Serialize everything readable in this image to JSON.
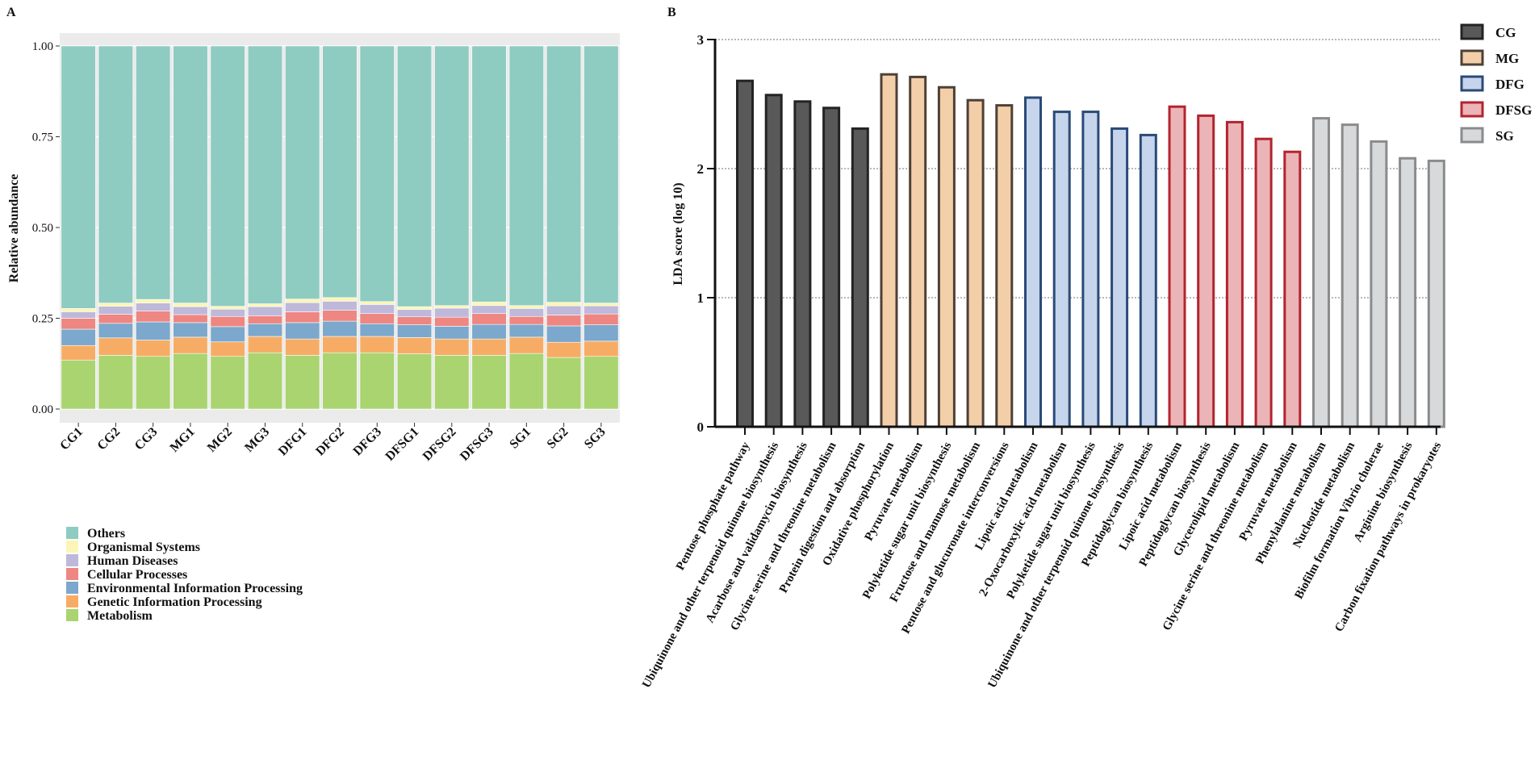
{
  "chart_data": [
    {
      "panel": "A",
      "type": "bar",
      "stacked": true,
      "ylabel": "Relative abundance",
      "xlabel": "",
      "ylim": [
        0,
        1
      ],
      "yticks": [
        "0.00",
        "0.25",
        "0.50",
        "0.75",
        "1.00"
      ],
      "grid": true,
      "legend_position": "bottom-left",
      "categories": [
        "CG1",
        "CG2",
        "CG3",
        "MG1",
        "MG2",
        "MG3",
        "DFG1",
        "DFG2",
        "DFG3",
        "DFSG1",
        "DFSG2",
        "DFSG3",
        "SG1",
        "SG2",
        "SG3"
      ],
      "series": [
        {
          "name": "Metabolism",
          "color": "#A9D46F",
          "values": [
            0.135,
            0.148,
            0.145,
            0.153,
            0.145,
            0.155,
            0.148,
            0.155,
            0.155,
            0.152,
            0.148,
            0.148,
            0.153,
            0.142,
            0.145
          ]
        },
        {
          "name": "Genetic Information Processing",
          "color": "#F7AC65",
          "values": [
            0.04,
            0.048,
            0.045,
            0.045,
            0.04,
            0.045,
            0.045,
            0.045,
            0.045,
            0.045,
            0.045,
            0.045,
            0.045,
            0.042,
            0.042
          ]
        },
        {
          "name": "Environmental Information Processing",
          "color": "#7BA8CC",
          "values": [
            0.045,
            0.04,
            0.05,
            0.04,
            0.042,
            0.035,
            0.045,
            0.042,
            0.035,
            0.035,
            0.035,
            0.04,
            0.035,
            0.045,
            0.045
          ]
        },
        {
          "name": "Cellular Processes",
          "color": "#EE8682",
          "values": [
            0.03,
            0.025,
            0.03,
            0.022,
            0.028,
            0.022,
            0.03,
            0.03,
            0.028,
            0.022,
            0.025,
            0.03,
            0.022,
            0.03,
            0.03
          ]
        },
        {
          "name": "Human Diseases",
          "color": "#BEB8DA",
          "values": [
            0.018,
            0.022,
            0.022,
            0.022,
            0.02,
            0.025,
            0.025,
            0.025,
            0.025,
            0.02,
            0.025,
            0.022,
            0.022,
            0.025,
            0.022
          ]
        },
        {
          "name": "Organismal Systems",
          "color": "#FBF6B5",
          "values": [
            0.009,
            0.009,
            0.01,
            0.01,
            0.008,
            0.008,
            0.01,
            0.01,
            0.008,
            0.008,
            0.007,
            0.01,
            0.008,
            0.01,
            0.008
          ]
        },
        {
          "name": "Others",
          "color": "#8ECBC1",
          "values": [
            0.723,
            0.708,
            0.698,
            0.708,
            0.717,
            0.71,
            0.697,
            0.693,
            0.704,
            0.718,
            0.715,
            0.705,
            0.715,
            0.706,
            0.708
          ]
        }
      ]
    },
    {
      "panel": "B",
      "type": "bar",
      "ylabel": "LDA score (log 10)",
      "xlabel": "",
      "ylim": [
        0,
        3
      ],
      "yticks": [
        "0",
        "1",
        "2",
        "3"
      ],
      "grid": true,
      "legend_position": "top-right",
      "groups": [
        {
          "name": "CG",
          "fill": "#595959",
          "stroke": "#232323"
        },
        {
          "name": "MG",
          "fill": "#F3CFA9",
          "stroke": "#4E4037"
        },
        {
          "name": "DFG",
          "fill": "#C6D5EC",
          "stroke": "#2A4A78"
        },
        {
          "name": "DFSG",
          "fill": "#EBB4B7",
          "stroke": "#B3242E"
        },
        {
          "name": "SG",
          "fill": "#D8D9DA",
          "stroke": "#8A8B8D"
        }
      ],
      "bars": [
        {
          "label": "Pentose phosphate pathway",
          "group": "CG",
          "value": 2.68
        },
        {
          "label": "Ubiquinone and other terpenoid quinone biosynthesis",
          "group": "CG",
          "value": 2.57
        },
        {
          "label": "Acarbose and validamycin biosynthesis",
          "group": "CG",
          "value": 2.52
        },
        {
          "label": "Glycine serine and threonine metabolism",
          "group": "CG",
          "value": 2.47
        },
        {
          "label": "Protein digestion and absorption",
          "group": "CG",
          "value": 2.31
        },
        {
          "label": "Oxidative phosphorylation",
          "group": "MG",
          "value": 2.73
        },
        {
          "label": "Pyruvate metabolism",
          "group": "MG",
          "value": 2.71
        },
        {
          "label": "Polyketide sugar unit biosynthesis",
          "group": "MG",
          "value": 2.63
        },
        {
          "label": "Fructose and mannose metabolism",
          "group": "MG",
          "value": 2.53
        },
        {
          "label": "Pentose and glucuronate interconversions",
          "group": "MG",
          "value": 2.49
        },
        {
          "label": "Lipoic acid metabolism",
          "group": "DFG",
          "value": 2.55
        },
        {
          "label": "2-Oxocarboxylic acid metabolism",
          "group": "DFG",
          "value": 2.44
        },
        {
          "label": "Polyketide sugar unit biosynthesis",
          "group": "DFG",
          "value": 2.44
        },
        {
          "label": "Ubiquinone and other terpenoid quinone biosynthesis",
          "group": "DFG",
          "value": 2.31
        },
        {
          "label": "Peptidoglycan biosynthesis",
          "group": "DFG",
          "value": 2.26
        },
        {
          "label": "Lipoic acid metabolism",
          "group": "DFSG",
          "value": 2.48
        },
        {
          "label": "Peptidoglycan biosynthesis",
          "group": "DFSG",
          "value": 2.41
        },
        {
          "label": "Glycerolipid metabolism",
          "group": "DFSG",
          "value": 2.36
        },
        {
          "label": "Glycine serine and threonine metabolism",
          "group": "DFSG",
          "value": 2.23
        },
        {
          "label": "Pyruvate metabolism",
          "group": "DFSG",
          "value": 2.13
        },
        {
          "label": "Phenylalanine metabolism",
          "group": "SG",
          "value": 2.39
        },
        {
          "label": "Nucleotide metabolism",
          "group": "SG",
          "value": 2.34
        },
        {
          "label": "Biofilm formation Vibrio cholerae",
          "group": "SG",
          "value": 2.21
        },
        {
          "label": "Arginine biosynthesis",
          "group": "SG",
          "value": 2.08
        },
        {
          "label": "Carbon fixation pathways in prokaryotes",
          "group": "SG",
          "value": 2.06
        }
      ]
    }
  ]
}
